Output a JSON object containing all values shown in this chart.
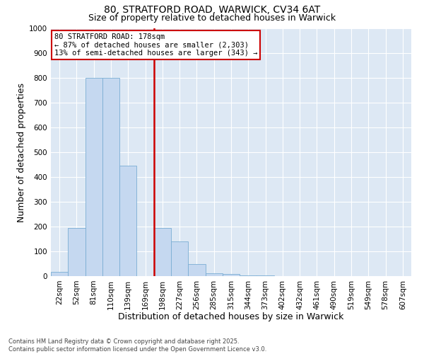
{
  "title_line1": "80, STRATFORD ROAD, WARWICK, CV34 6AT",
  "title_line2": "Size of property relative to detached houses in Warwick",
  "xlabel": "Distribution of detached houses by size in Warwick",
  "ylabel": "Number of detached properties",
  "categories": [
    "22sqm",
    "52sqm",
    "81sqm",
    "110sqm",
    "139sqm",
    "169sqm",
    "198sqm",
    "227sqm",
    "256sqm",
    "285sqm",
    "315sqm",
    "344sqm",
    "373sqm",
    "402sqm",
    "432sqm",
    "461sqm",
    "490sqm",
    "519sqm",
    "549sqm",
    "578sqm",
    "607sqm"
  ],
  "values": [
    18,
    195,
    800,
    800,
    445,
    0,
    195,
    140,
    50,
    12,
    8,
    3,
    2,
    1,
    0,
    0,
    0,
    0,
    0,
    0,
    0
  ],
  "bar_color": "#c5d8f0",
  "bar_edge_color": "#7aadd4",
  "vline_color": "#cc0000",
  "annotation_text": "80 STRATFORD ROAD: 178sqm\n← 87% of detached houses are smaller (2,303)\n13% of semi-detached houses are larger (343) →",
  "annotation_box_color": "#cc0000",
  "ylim": [
    0,
    1000
  ],
  "yticks": [
    0,
    100,
    200,
    300,
    400,
    500,
    600,
    700,
    800,
    900,
    1000
  ],
  "background_color": "#dde8f4",
  "grid_color": "white",
  "footnote": "Contains HM Land Registry data © Crown copyright and database right 2025.\nContains public sector information licensed under the Open Government Licence v3.0.",
  "title_fontsize": 10,
  "subtitle_fontsize": 9,
  "axis_label_fontsize": 9,
  "tick_fontsize": 7.5,
  "annot_fontsize": 7.5,
  "footnote_fontsize": 6
}
